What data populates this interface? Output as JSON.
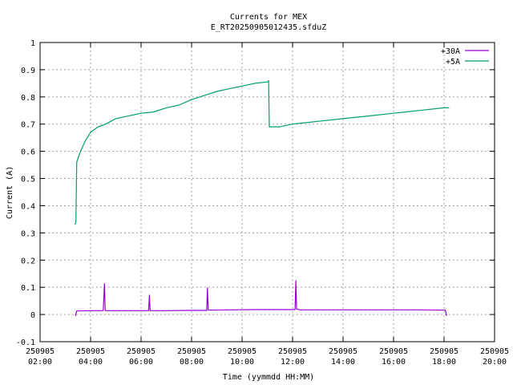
{
  "chart_data": {
    "type": "line",
    "title": "Currents for MEX",
    "subtitle": "E_RT20250905012435.sfduZ",
    "xlabel": "Time (yymmdd HH:MM)",
    "ylabel": "Current (A)",
    "x_ticks": [
      {
        "hours": 2,
        "date": "250905",
        "time": "02:00"
      },
      {
        "hours": 4,
        "date": "250905",
        "time": "04:00"
      },
      {
        "hours": 6,
        "date": "250905",
        "time": "06:00"
      },
      {
        "hours": 8,
        "date": "250905",
        "time": "08:00"
      },
      {
        "hours": 10,
        "date": "250905",
        "time": "10:00"
      },
      {
        "hours": 12,
        "date": "250905",
        "time": "12:00"
      },
      {
        "hours": 14,
        "date": "250905",
        "time": "14:00"
      },
      {
        "hours": 16,
        "date": "250905",
        "time": "16:00"
      },
      {
        "hours": 18,
        "date": "250905",
        "time": "18:00"
      },
      {
        "hours": 20,
        "date": "250905",
        "time": "20:00"
      }
    ],
    "y_ticks": [
      "-0.1",
      "0",
      "0.1",
      "0.2",
      "0.3",
      "0.4",
      "0.5",
      "0.6",
      "0.7",
      "0.8",
      "0.9",
      "1"
    ],
    "xlim_hours": [
      2,
      20
    ],
    "ylim": [
      -0.1,
      1.0
    ],
    "grid": true,
    "legend_position": "top-right",
    "series": [
      {
        "name": "+30A",
        "color": "#9400d3",
        "points": [
          [
            3.4,
            -0.005
          ],
          [
            3.45,
            0.013
          ],
          [
            4.0,
            0.014
          ],
          [
            4.5,
            0.014
          ],
          [
            4.55,
            0.113
          ],
          [
            4.58,
            0.014
          ],
          [
            5.0,
            0.014
          ],
          [
            6.0,
            0.014
          ],
          [
            6.3,
            0.014
          ],
          [
            6.33,
            0.071
          ],
          [
            6.36,
            0.014
          ],
          [
            7.0,
            0.014
          ],
          [
            8.0,
            0.015
          ],
          [
            8.6,
            0.015
          ],
          [
            8.63,
            0.098
          ],
          [
            8.66,
            0.016
          ],
          [
            9.5,
            0.017
          ],
          [
            10.5,
            0.018
          ],
          [
            11.5,
            0.018
          ],
          [
            12.1,
            0.018
          ],
          [
            12.13,
            0.124
          ],
          [
            12.16,
            0.02
          ],
          [
            12.3,
            0.017
          ],
          [
            13.0,
            0.017
          ],
          [
            14.0,
            0.017
          ],
          [
            15.0,
            0.017
          ],
          [
            16.0,
            0.017
          ],
          [
            17.0,
            0.017
          ],
          [
            18.0,
            0.016
          ],
          [
            18.05,
            0.016
          ],
          [
            18.1,
            -0.005
          ]
        ]
      },
      {
        "name": "+5A",
        "color": "#009e73",
        "points": [
          [
            3.38,
            0.33
          ],
          [
            3.42,
            0.34
          ],
          [
            3.45,
            0.56
          ],
          [
            3.6,
            0.6
          ],
          [
            3.8,
            0.64
          ],
          [
            4.0,
            0.67
          ],
          [
            4.3,
            0.69
          ],
          [
            4.6,
            0.7
          ],
          [
            5.0,
            0.72
          ],
          [
            5.5,
            0.73
          ],
          [
            6.0,
            0.74
          ],
          [
            6.5,
            0.745
          ],
          [
            7.0,
            0.76
          ],
          [
            7.5,
            0.77
          ],
          [
            8.0,
            0.79
          ],
          [
            8.5,
            0.805
          ],
          [
            9.0,
            0.82
          ],
          [
            9.5,
            0.83
          ],
          [
            10.0,
            0.84
          ],
          [
            10.5,
            0.85
          ],
          [
            11.0,
            0.855
          ],
          [
            11.05,
            0.86
          ],
          [
            11.08,
            0.69
          ],
          [
            11.5,
            0.69
          ],
          [
            12.0,
            0.7
          ],
          [
            12.5,
            0.705
          ],
          [
            13.0,
            0.71
          ],
          [
            14.0,
            0.72
          ],
          [
            15.0,
            0.73
          ],
          [
            16.0,
            0.74
          ],
          [
            17.0,
            0.75
          ],
          [
            18.0,
            0.76
          ],
          [
            18.2,
            0.76
          ]
        ]
      }
    ]
  }
}
